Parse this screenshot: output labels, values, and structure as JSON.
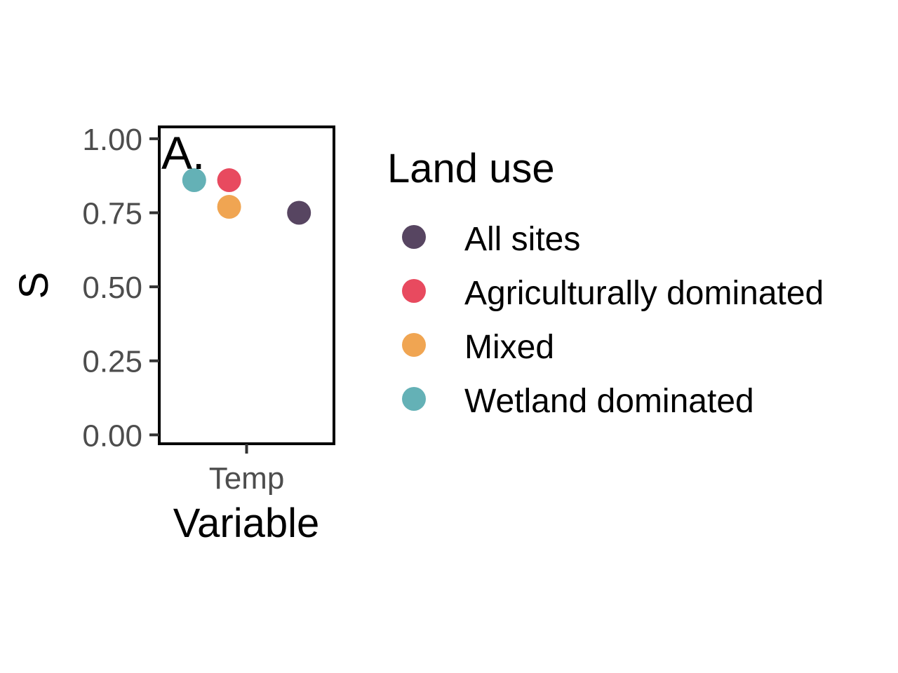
{
  "chart_data": {
    "type": "scatter",
    "panel_label": "A.",
    "xlabel": "Variable",
    "ylabel": "S",
    "categories": [
      "Temp"
    ],
    "ylim": [
      -0.03,
      1.04
    ],
    "yticks": [
      0,
      0.25,
      0.5,
      0.75,
      1
    ],
    "ytick_labels": [
      "0.00",
      "0.25",
      "0.50",
      "0.75",
      "1.00"
    ],
    "grid": false,
    "legend": {
      "title": "Land use",
      "position": "right"
    },
    "series": [
      {
        "name": "All sites",
        "color": "#574561",
        "category": "Temp",
        "y": 0.75,
        "dodge": 0.3
      },
      {
        "name": "Agriculturally dominated",
        "color": "#E84A5F",
        "category": "Temp",
        "y": 0.86,
        "dodge": -0.1
      },
      {
        "name": "Mixed",
        "color": "#F0A552",
        "category": "Temp",
        "y": 0.77,
        "dodge": -0.1
      },
      {
        "name": "Wetland dominated",
        "color": "#64B1B6",
        "category": "Temp",
        "y": 0.86,
        "dodge": -0.3
      }
    ]
  }
}
